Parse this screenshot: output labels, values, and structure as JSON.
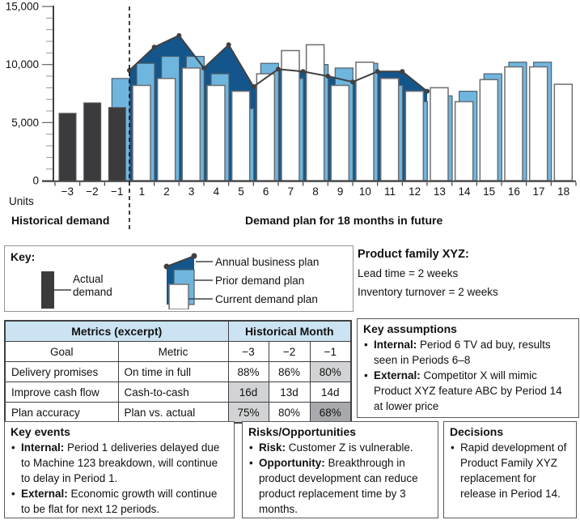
{
  "colors": {
    "actual_demand": "#3B3B3D",
    "prior_demand_plan": "#6FB6DF",
    "current_demand_plan": "#FFFFFF",
    "annual_business_plan": "#14568B",
    "plan_line": "#414042",
    "white_bar_outline": "#6D6E71",
    "blue_bar_outline": "#4E5F6B",
    "table_header_bg": "#CBE3F2",
    "cell_shade_light": "#D1D3D4",
    "cell_shade_dark": "#A7A9AC"
  },
  "chart_data": {
    "type": "bar",
    "ylabel": "Units",
    "ylim": [
      0,
      15000
    ],
    "yticks": [
      {
        "value": 0,
        "label": "0"
      },
      {
        "value": 5000,
        "label": "5,000"
      },
      {
        "value": 10000,
        "label": "10,000"
      },
      {
        "value": 15000,
        "label": "15,000"
      }
    ],
    "minor_tick_step": 1000,
    "grid": false,
    "section_labels": {
      "historical": "Historical demand",
      "future": "Demand plan for 18 months in future"
    },
    "historical": {
      "categories": [
        "−3",
        "−2",
        "−1"
      ],
      "series": [
        {
          "name": "Actual demand",
          "values": [
            5800,
            6700,
            6300
          ]
        }
      ]
    },
    "current_period_prior_plan": 8800,
    "future": {
      "categories": [
        "1",
        "2",
        "3",
        "4",
        "5",
        "6",
        "7",
        "8",
        "9",
        "10",
        "11",
        "12",
        "13",
        "14",
        "15",
        "16",
        "17",
        "18"
      ],
      "series": [
        {
          "name": "Prior demand plan",
          "values": [
            10100,
            10700,
            10700,
            9200,
            6200,
            10100,
            8800,
            10000,
            9700,
            10100,
            8200,
            6800,
            7300,
            7700,
            9200,
            10200,
            10200,
            null
          ]
        },
        {
          "name": "Current demand plan",
          "values": [
            8200,
            8800,
            9700,
            8200,
            7700,
            9200,
            11200,
            11700,
            8200,
            10200,
            8800,
            7700,
            8000,
            6800,
            8700,
            9800,
            9800,
            8300
          ]
        }
      ]
    },
    "annual_business_plan": {
      "name": "Annual business plan",
      "period_boundary_values": [
        9500,
        11500,
        12500,
        9700,
        11700,
        8100,
        9600,
        9400,
        9000,
        8500,
        9400,
        9400,
        7700
      ]
    }
  },
  "key": {
    "title": "Key:",
    "items": [
      {
        "label": "Actual demand"
      },
      {
        "label": "Annual business plan"
      },
      {
        "label": "Prior demand plan"
      },
      {
        "label": "Current demand plan"
      }
    ]
  },
  "product_family": {
    "title": "Product family XYZ:",
    "lines": [
      "Lead time = 2 weeks",
      "Inventory turnover = 2 weeks"
    ]
  },
  "metrics_table": {
    "header_group_left": "Metrics (excerpt)",
    "header_group_right": "Historical Month",
    "columns": [
      "Goal",
      "Metric",
      "−3",
      "−2",
      "−1"
    ],
    "rows": [
      {
        "goal": "Delivery promises",
        "metric": "On time in full",
        "values": [
          "88%",
          "86%",
          "80%"
        ],
        "shade": [
          null,
          null,
          "light"
        ]
      },
      {
        "goal": "Improve cash flow",
        "metric": "Cash-to-cash",
        "values": [
          "16d",
          "13d",
          "14d"
        ],
        "shade": [
          "light",
          null,
          null
        ]
      },
      {
        "goal": "Plan accuracy",
        "metric": "Plan vs. actual",
        "values": [
          "75%",
          "80%",
          "68%"
        ],
        "shade": [
          "light",
          null,
          "dark"
        ]
      }
    ]
  },
  "key_assumptions": {
    "title": "Key assumptions",
    "items": [
      {
        "lead": "Internal:",
        "text": "Period 6 TV ad buy, results seen in Periods 6–8"
      },
      {
        "lead": "External:",
        "text": "Competitor X will mimic Product XYZ feature ABC by Period 14 at lower price"
      }
    ]
  },
  "key_events": {
    "title": "Key events",
    "items": [
      {
        "lead": "Internal:",
        "text": "Period 1 deliveries delayed due to Machine 123 breakdown, will continue to delay in Period 1."
      },
      {
        "lead": "External:",
        "text": "Economic growth will continue to be flat for next 12 periods."
      }
    ]
  },
  "risks_opportunities": {
    "title": "Risks/Opportunities",
    "items": [
      {
        "lead": "Risk:",
        "text": "Customer Z is vulnerable."
      },
      {
        "lead": "Opportunity:",
        "text": "Breakthrough in product development can reduce product replacement time by 3 months."
      }
    ]
  },
  "decisions": {
    "title": "Decisions",
    "items": [
      {
        "lead": "",
        "text": "Rapid development of Product Family XYZ replacement for release in Period 14."
      }
    ]
  }
}
